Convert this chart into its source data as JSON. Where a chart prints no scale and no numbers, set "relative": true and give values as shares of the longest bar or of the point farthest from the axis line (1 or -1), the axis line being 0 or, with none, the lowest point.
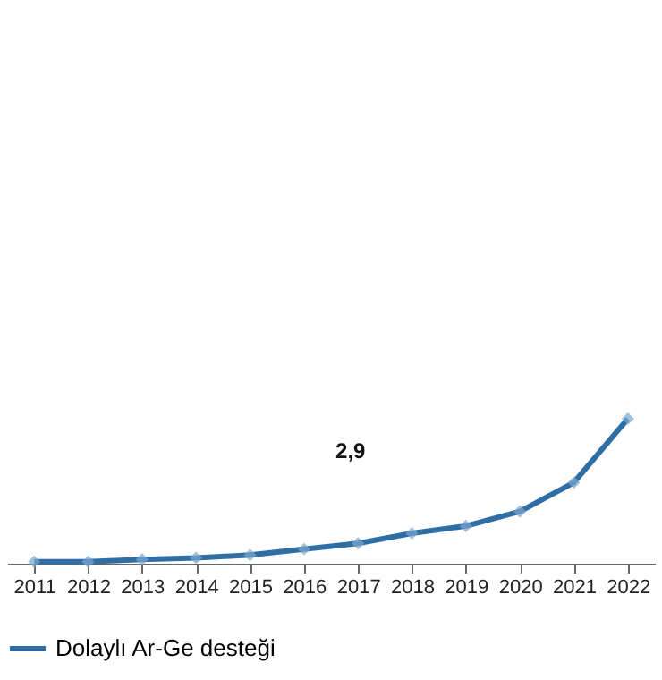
{
  "chart_data": {
    "type": "line",
    "relative": true,
    "categories": [
      "2011",
      "2012",
      "2013",
      "2014",
      "2015",
      "2016",
      "2017",
      "2018",
      "2019",
      "2020",
      "2021",
      "2022"
    ],
    "series": [
      {
        "name": "Dolaylı Ar-Ge desteği",
        "color": "#2f6ea5",
        "values": [
          0.014,
          0.014,
          0.03,
          0.04,
          0.06,
          0.1,
          0.14,
          0.21,
          0.26,
          0.36,
          0.56,
          1
        ]
      }
    ],
    "annotations": [
      "2,9"
    ],
    "marker": "diamond",
    "line_style": "solid",
    "legend": "bottom",
    "grid": false
  }
}
